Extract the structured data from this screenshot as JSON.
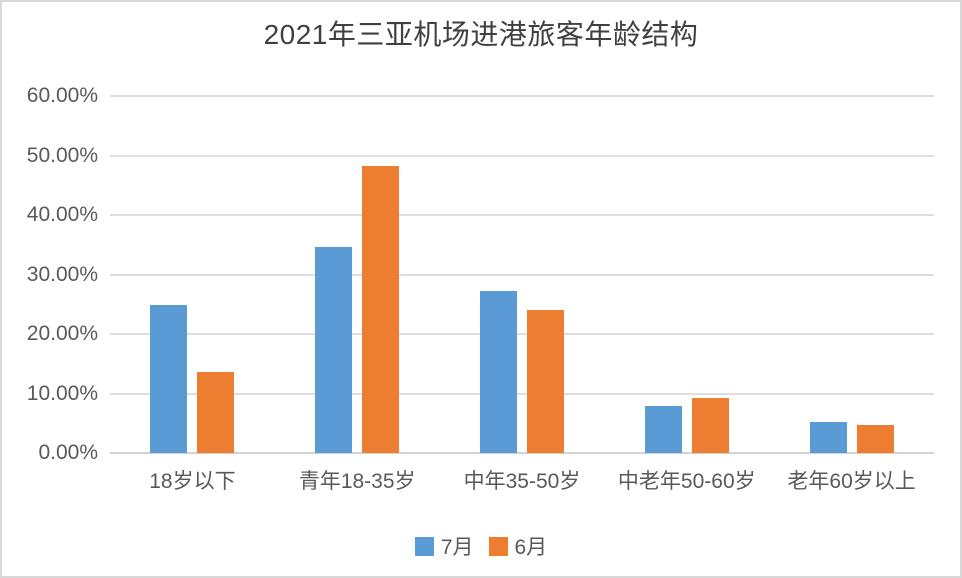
{
  "title": "2021年三亚机场进港旅客年龄结构",
  "colors": {
    "series_july": "#5B9BD5",
    "series_june": "#ED7D31",
    "gridline": "#DEDEDE",
    "axis_line": "#D2D2D2",
    "title_text": "#404040",
    "label_text": "#595959",
    "border": "#D9D9D9",
    "background": "#FFFFFF"
  },
  "chart_data": {
    "type": "bar",
    "title": "2021年三亚机场进港旅客年龄结构",
    "categories": [
      "18岁以下",
      "青年18-35岁",
      "中年35-50岁",
      "中老年50-60岁",
      "老年60岁以上"
    ],
    "series": [
      {
        "name": "7月",
        "color": "#5B9BD5",
        "values": [
          24.9,
          34.7,
          27.2,
          7.9,
          5.2
        ]
      },
      {
        "name": "6月",
        "color": "#ED7D31",
        "values": [
          13.7,
          48.2,
          24.1,
          9.2,
          4.7
        ]
      }
    ],
    "xlabel": "",
    "ylabel": "",
    "ylim": [
      0,
      60
    ],
    "ytick_step": 10,
    "ytick_labels": [
      "0.00%",
      "10.00%",
      "20.00%",
      "30.00%",
      "40.00%",
      "50.00%",
      "60.00%"
    ],
    "value_format": "percent",
    "grid": true,
    "legend_position": "bottom"
  }
}
